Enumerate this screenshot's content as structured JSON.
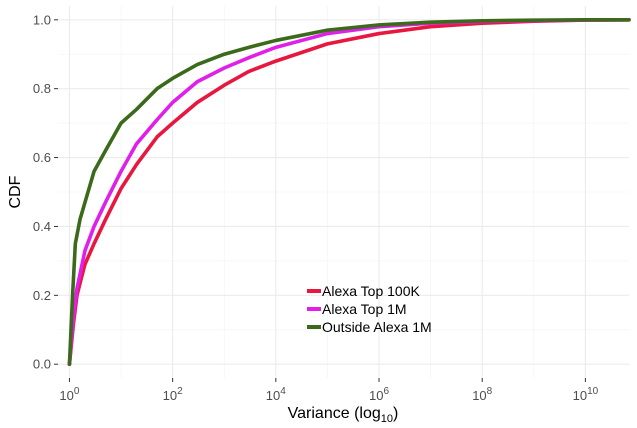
{
  "chart_data": {
    "type": "line",
    "xlabel": "Variance (log",
    "xlabel_subscript": "10",
    "xlabel_close": ")",
    "ylabel": "CDF",
    "x_scale": "log10",
    "xlim": [
      0.6,
      70000000000.0
    ],
    "ylim": [
      -0.04,
      1.04
    ],
    "grid": true,
    "legend_position": "bottom-center",
    "x_ticks": [
      {
        "value": 1,
        "base": "10",
        "exp": "0"
      },
      {
        "value": 100,
        "base": "10",
        "exp": "2"
      },
      {
        "value": 10000,
        "base": "10",
        "exp": "4"
      },
      {
        "value": 1000000,
        "base": "10",
        "exp": "6"
      },
      {
        "value": 100000000,
        "base": "10",
        "exp": "8"
      },
      {
        "value": 10000000000,
        "base": "10",
        "exp": "10"
      }
    ],
    "y_ticks": [
      {
        "value": 0.0,
        "label": "0.0"
      },
      {
        "value": 0.2,
        "label": "0.2"
      },
      {
        "value": 0.4,
        "label": "0.4"
      },
      {
        "value": 0.6,
        "label": "0.6"
      },
      {
        "value": 0.8,
        "label": "0.8"
      },
      {
        "value": 1.0,
        "label": "1.0"
      }
    ],
    "series": [
      {
        "name": "Alexa Top 100K",
        "color": "#e8173f",
        "points": [
          [
            1,
            0
          ],
          [
            1.2,
            0.12
          ],
          [
            1.4,
            0.2
          ],
          [
            1.7,
            0.25
          ],
          [
            2,
            0.29
          ],
          [
            3,
            0.35
          ],
          [
            5,
            0.42
          ],
          [
            10,
            0.51
          ],
          [
            20,
            0.58
          ],
          [
            50,
            0.66
          ],
          [
            100,
            0.7
          ],
          [
            300,
            0.76
          ],
          [
            1000,
            0.81
          ],
          [
            3000,
            0.85
          ],
          [
            10000,
            0.88
          ],
          [
            100000,
            0.93
          ],
          [
            1000000,
            0.96
          ],
          [
            10000000,
            0.98
          ],
          [
            100000000,
            0.99
          ],
          [
            1000000000,
            0.996
          ],
          [
            10000000000,
            0.999
          ],
          [
            70000000000,
            1.0
          ]
        ]
      },
      {
        "name": "Alexa Top 1M",
        "color": "#e020e8",
        "points": [
          [
            1,
            0
          ],
          [
            1.2,
            0.14
          ],
          [
            1.4,
            0.22
          ],
          [
            1.7,
            0.28
          ],
          [
            2,
            0.33
          ],
          [
            3,
            0.4
          ],
          [
            5,
            0.47
          ],
          [
            10,
            0.56
          ],
          [
            20,
            0.64
          ],
          [
            50,
            0.71
          ],
          [
            100,
            0.76
          ],
          [
            300,
            0.82
          ],
          [
            1000,
            0.86
          ],
          [
            3000,
            0.89
          ],
          [
            10000,
            0.92
          ],
          [
            100000,
            0.96
          ],
          [
            1000000,
            0.98
          ],
          [
            10000000,
            0.99
          ],
          [
            100000000,
            0.995
          ],
          [
            1000000000,
            0.998
          ],
          [
            10000000000,
            0.999
          ],
          [
            70000000000,
            1.0
          ]
        ]
      },
      {
        "name": "Outside Alexa 1M",
        "color": "#3a6a1a",
        "points": [
          [
            1,
            0
          ],
          [
            1.15,
            0.2
          ],
          [
            1.3,
            0.35
          ],
          [
            1.6,
            0.42
          ],
          [
            2,
            0.47
          ],
          [
            3,
            0.56
          ],
          [
            5,
            0.62
          ],
          [
            10,
            0.7
          ],
          [
            20,
            0.74
          ],
          [
            50,
            0.8
          ],
          [
            100,
            0.83
          ],
          [
            300,
            0.87
          ],
          [
            1000,
            0.9
          ],
          [
            3000,
            0.92
          ],
          [
            10000,
            0.94
          ],
          [
            100000,
            0.97
          ],
          [
            1000000,
            0.985
          ],
          [
            10000000,
            0.993
          ],
          [
            100000000,
            0.997
          ],
          [
            1000000000,
            0.999
          ],
          [
            10000000000,
            1.0
          ],
          [
            70000000000,
            1.0
          ]
        ]
      }
    ]
  }
}
